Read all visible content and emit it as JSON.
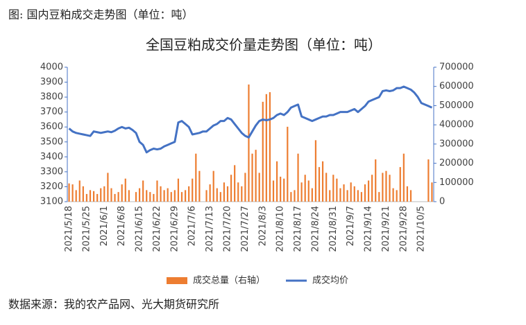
{
  "caption": "图: 国内豆粕成交走势图（单位：吨）",
  "source": "数据来源：我的农产品网、光大期货研究所",
  "chart_data": {
    "type": "bar-line",
    "title": "全国豆粕成交价量走势图（单位：吨）",
    "categories": [
      "2021/5/18",
      null,
      null,
      null,
      null,
      "2021/5/25",
      null,
      null,
      null,
      null,
      "2021/6/1",
      null,
      null,
      null,
      null,
      "2021/6/8",
      null,
      null,
      null,
      null,
      "2021/6/15",
      null,
      null,
      null,
      null,
      "2021/6/22",
      null,
      null,
      null,
      null,
      "2021/6/29",
      null,
      null,
      null,
      null,
      "2021/7/6",
      null,
      null,
      null,
      null,
      "2021/7/13",
      null,
      null,
      null,
      null,
      "2021/7/20",
      null,
      null,
      null,
      null,
      "2021/7/27",
      null,
      null,
      null,
      null,
      "2021/8/3",
      null,
      null,
      null,
      null,
      "2021/8/10",
      null,
      null,
      null,
      null,
      "2021/8/17",
      null,
      null,
      null,
      null,
      "2021/8/24",
      null,
      null,
      null,
      null,
      "2021/8/31",
      null,
      null,
      null,
      null,
      "2021/9/7",
      null,
      null,
      null,
      null,
      "2021/9/14",
      null,
      null,
      null,
      null,
      "2021/9/21",
      null,
      null,
      null,
      null,
      "2021/9/28",
      null,
      null,
      null,
      null,
      "2021/10/5",
      null,
      null,
      null
    ],
    "series": [
      {
        "name": "成交总量（右轴）",
        "color": "#ed7d31",
        "kind": "bar",
        "axis": "y2",
        "values": [
          95000,
          90000,
          60000,
          110000,
          80000,
          40000,
          60000,
          55000,
          40000,
          70000,
          80000,
          150000,
          70000,
          40000,
          50000,
          90000,
          120000,
          60000,
          0,
          50000,
          70000,
          110000,
          60000,
          50000,
          40000,
          110000,
          80000,
          60000,
          70000,
          50000,
          60000,
          120000,
          50000,
          60000,
          80000,
          120000,
          250000,
          160000,
          0,
          60000,
          90000,
          160000,
          70000,
          50000,
          100000,
          80000,
          140000,
          190000,
          100000,
          80000,
          150000,
          610000,
          250000,
          270000,
          150000,
          520000,
          560000,
          570000,
          110000,
          210000,
          130000,
          120000,
          390000,
          50000,
          60000,
          250000,
          100000,
          140000,
          110000,
          70000,
          320000,
          180000,
          210000,
          150000,
          60000,
          140000,
          120000,
          70000,
          90000,
          60000,
          100000,
          80000,
          60000,
          50000,
          90000,
          110000,
          140000,
          220000,
          50000,
          150000,
          160000,
          140000,
          70000,
          60000,
          180000,
          250000,
          80000,
          60000,
          0,
          0,
          0,
          0,
          220000,
          100000
        ]
      },
      {
        "name": "成交均价",
        "color": "#4472c4",
        "kind": "line",
        "values": [
          3590,
          3570,
          3560,
          3555,
          3550,
          3545,
          3540,
          3570,
          3565,
          3560,
          3565,
          3570,
          3565,
          3575,
          3590,
          3600,
          3590,
          3595,
          3580,
          3560,
          3500,
          3480,
          3430,
          3445,
          3455,
          3450,
          3455,
          3470,
          3480,
          3490,
          3500,
          3630,
          3640,
          3620,
          3600,
          3550,
          3555,
          3560,
          3570,
          3570,
          3590,
          3610,
          3620,
          3640,
          3640,
          3660,
          3650,
          3620,
          3590,
          3560,
          3540,
          3530,
          3570,
          3610,
          3640,
          3650,
          3645,
          3650,
          3660,
          3680,
          3690,
          3680,
          3700,
          3730,
          3740,
          3750,
          3670,
          3660,
          3650,
          3640,
          3650,
          3660,
          3670,
          3670,
          3680,
          3680,
          3690,
          3700,
          3700,
          3700,
          3710,
          3720,
          3700,
          3720,
          3740,
          3770,
          3780,
          3790,
          3800,
          3840,
          3845,
          3840,
          3845,
          3860,
          3860,
          3870,
          3860,
          3850,
          3830,
          3800,
          3760,
          3750,
          3740,
          3730
        ]
      }
    ],
    "ylim": [
      3100,
      4000
    ],
    "yticks": [
      3100,
      3200,
      3300,
      3400,
      3500,
      3600,
      3700,
      3800,
      3900,
      4000
    ],
    "y2lim": [
      0,
      700000
    ],
    "y2ticks": [
      0,
      100000,
      200000,
      300000,
      400000,
      500000,
      600000,
      700000
    ],
    "legend": "bottom"
  }
}
